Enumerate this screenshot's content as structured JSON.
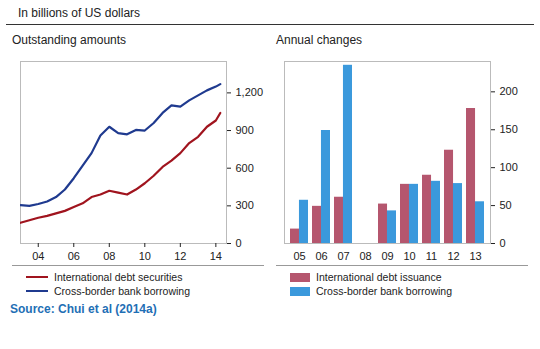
{
  "header": "In billions of US dollars",
  "source": "Source: Chui et al (2014a)",
  "chart_data": [
    {
      "type": "line",
      "title": "Outstanding amounts",
      "x": [
        2003,
        2003.5,
        2004,
        2004.5,
        2005,
        2005.5,
        2006,
        2006.5,
        2007,
        2007.5,
        2008,
        2008.5,
        2009,
        2009.5,
        2010,
        2010.5,
        2011,
        2011.5,
        2012,
        2012.5,
        2013,
        2013.5,
        2014,
        2014.25
      ],
      "series": [
        {
          "name": "International debt securities",
          "color": "#a0141e",
          "values": [
            165,
            185,
            205,
            220,
            240,
            260,
            290,
            320,
            370,
            390,
            420,
            405,
            390,
            430,
            480,
            540,
            610,
            660,
            720,
            800,
            850,
            930,
            980,
            1040
          ]
        },
        {
          "name": "Cross-border bank borrowing",
          "color": "#1f3a8f",
          "values": [
            305,
            300,
            315,
            335,
            370,
            430,
            520,
            620,
            720,
            860,
            930,
            880,
            870,
            905,
            900,
            960,
            1040,
            1100,
            1090,
            1140,
            1180,
            1220,
            1250,
            1270
          ]
        }
      ],
      "xlim": [
        2003,
        2014.6
      ],
      "xticks": [
        {
          "value": 2004,
          "label": "04"
        },
        {
          "value": 2006,
          "label": "06"
        },
        {
          "value": 2008,
          "label": "08"
        },
        {
          "value": 2010,
          "label": "10"
        },
        {
          "value": 2012,
          "label": "12"
        },
        {
          "value": 2014,
          "label": "14"
        }
      ],
      "ylim": [
        0,
        1450
      ],
      "yticks": [
        0,
        300,
        600,
        900,
        {
          "value": 1200,
          "label": "1,200"
        }
      ]
    },
    {
      "type": "bar",
      "title": "Annual changes",
      "categories": [
        "05",
        "06",
        "07",
        "08",
        "09",
        "10",
        "11",
        "12",
        "13"
      ],
      "series": [
        {
          "name": "International debt issuance",
          "color": "#b5566e",
          "values": [
            19,
            49,
            61,
            0,
            52,
            78,
            90,
            123,
            178
          ]
        },
        {
          "name": "Cross-border bank borrowing",
          "color": "#3b99dc",
          "values": [
            57,
            149,
            235,
            0,
            43,
            78,
            82,
            79,
            55
          ]
        }
      ],
      "ylim": [
        0,
        240
      ],
      "yticks": [
        0,
        50,
        100,
        150,
        200
      ]
    }
  ]
}
